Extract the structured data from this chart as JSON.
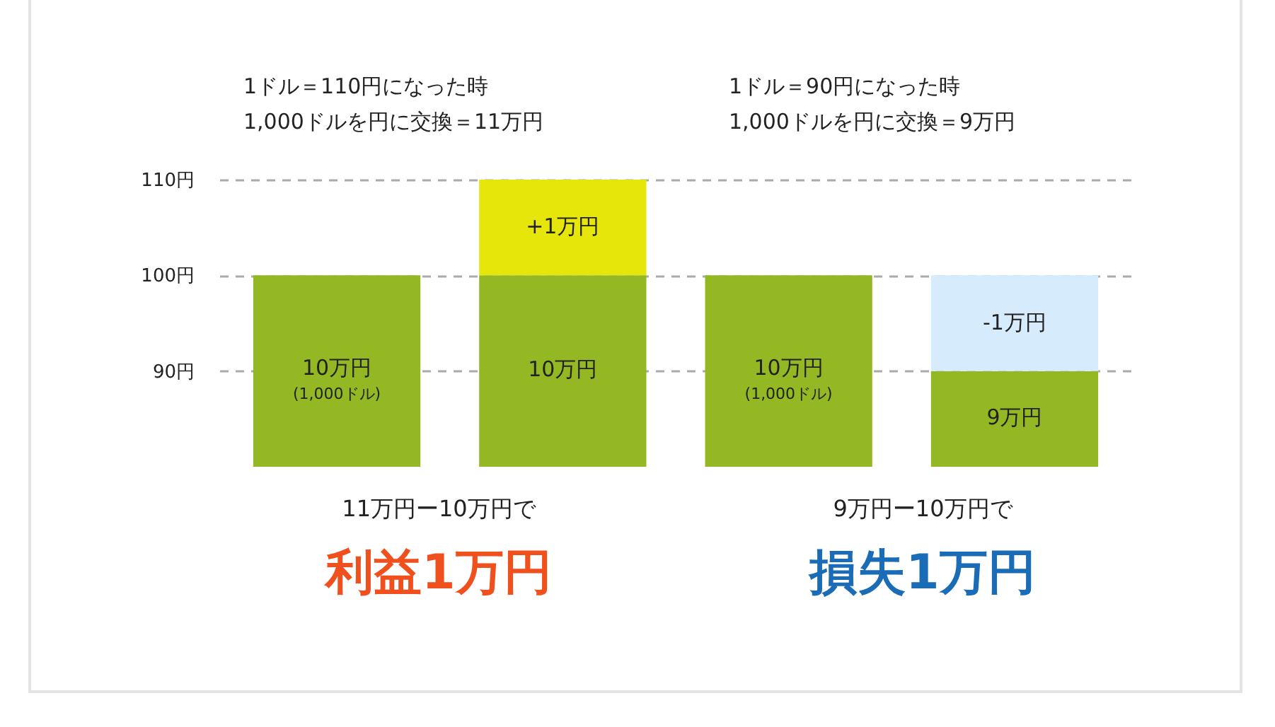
{
  "chart_data": {
    "type": "bar",
    "categories": [
      null,
      null,
      null,
      null
    ],
    "series": [
      {
        "colors": [
          "#93b823",
          "#93b823",
          "#93b823",
          "#93b823"
        ],
        "values": [
          20,
          20,
          20,
          10
        ],
        "base": [
          80,
          80,
          80,
          80
        ]
      },
      {
        "colors": [
          null,
          "#e6e60b",
          null,
          "#d6ebfb"
        ],
        "values": [
          null,
          10,
          null,
          10
        ],
        "base": [
          null,
          100,
          null,
          90
        ]
      }
    ],
    "ylim": [
      80,
      110
    ],
    "yticks": [
      {
        "value": 90,
        "label": "90円"
      },
      {
        "value": 100,
        "label": "100円"
      },
      {
        "value": 110,
        "label": "110円"
      }
    ],
    "grid": "y",
    "tick_labels": "y",
    "annotations": [
      "1ドル＝110円になった時",
      "1,000ドルを円に交換＝11万円",
      "1ドル＝90円になった時",
      "1,000ドルを円に交換＝9万円",
      "11万円ー10万円で",
      "利益1万円",
      "9万円ー10万円で",
      "損失1万円",
      "10万円",
      "(1,000ドル)",
      "+1万円",
      "10万円",
      "10万円",
      "(1,000ドル)",
      "-1万円",
      "9万円"
    ]
  }
}
